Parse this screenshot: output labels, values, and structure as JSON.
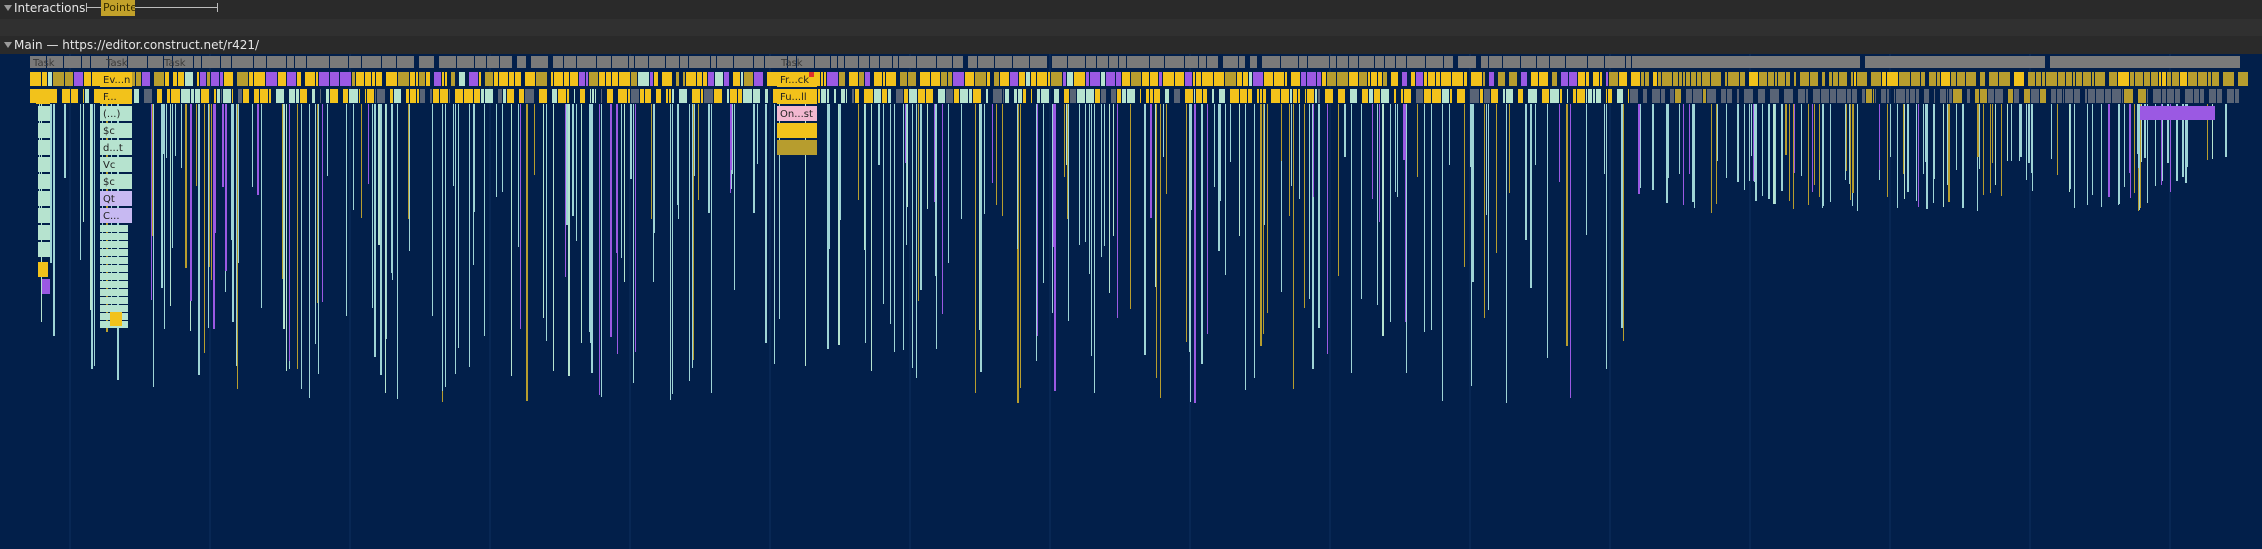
{
  "interactions": {
    "label": "Interactions",
    "pointer_label": "Pointe"
  },
  "main": {
    "label": "Main — https://editor.construct.net/r421/"
  },
  "flame": {
    "task_label": "Task",
    "labels": {
      "ev_n": "Ev...n",
      "f": "F...",
      "paren": "(...)",
      "sc1": "$c",
      "d_t": "d...t",
      "vc": "Vc",
      "sc2": "$c",
      "qt": "Qt",
      "c": "C...",
      "fr_ck": "Fr...ck",
      "fu_ll": "Fu...ll",
      "on_st": "On...st"
    }
  },
  "colors": {
    "background": "#021f4a",
    "task": "#7a7a7a",
    "scripting": "#f2c21b",
    "scripting_dark": "#b79d2e",
    "rendering": "#9b59e3",
    "painting": "#b6e3cf",
    "gc": "#c7b9f2",
    "line": "#9fd4d6"
  }
}
